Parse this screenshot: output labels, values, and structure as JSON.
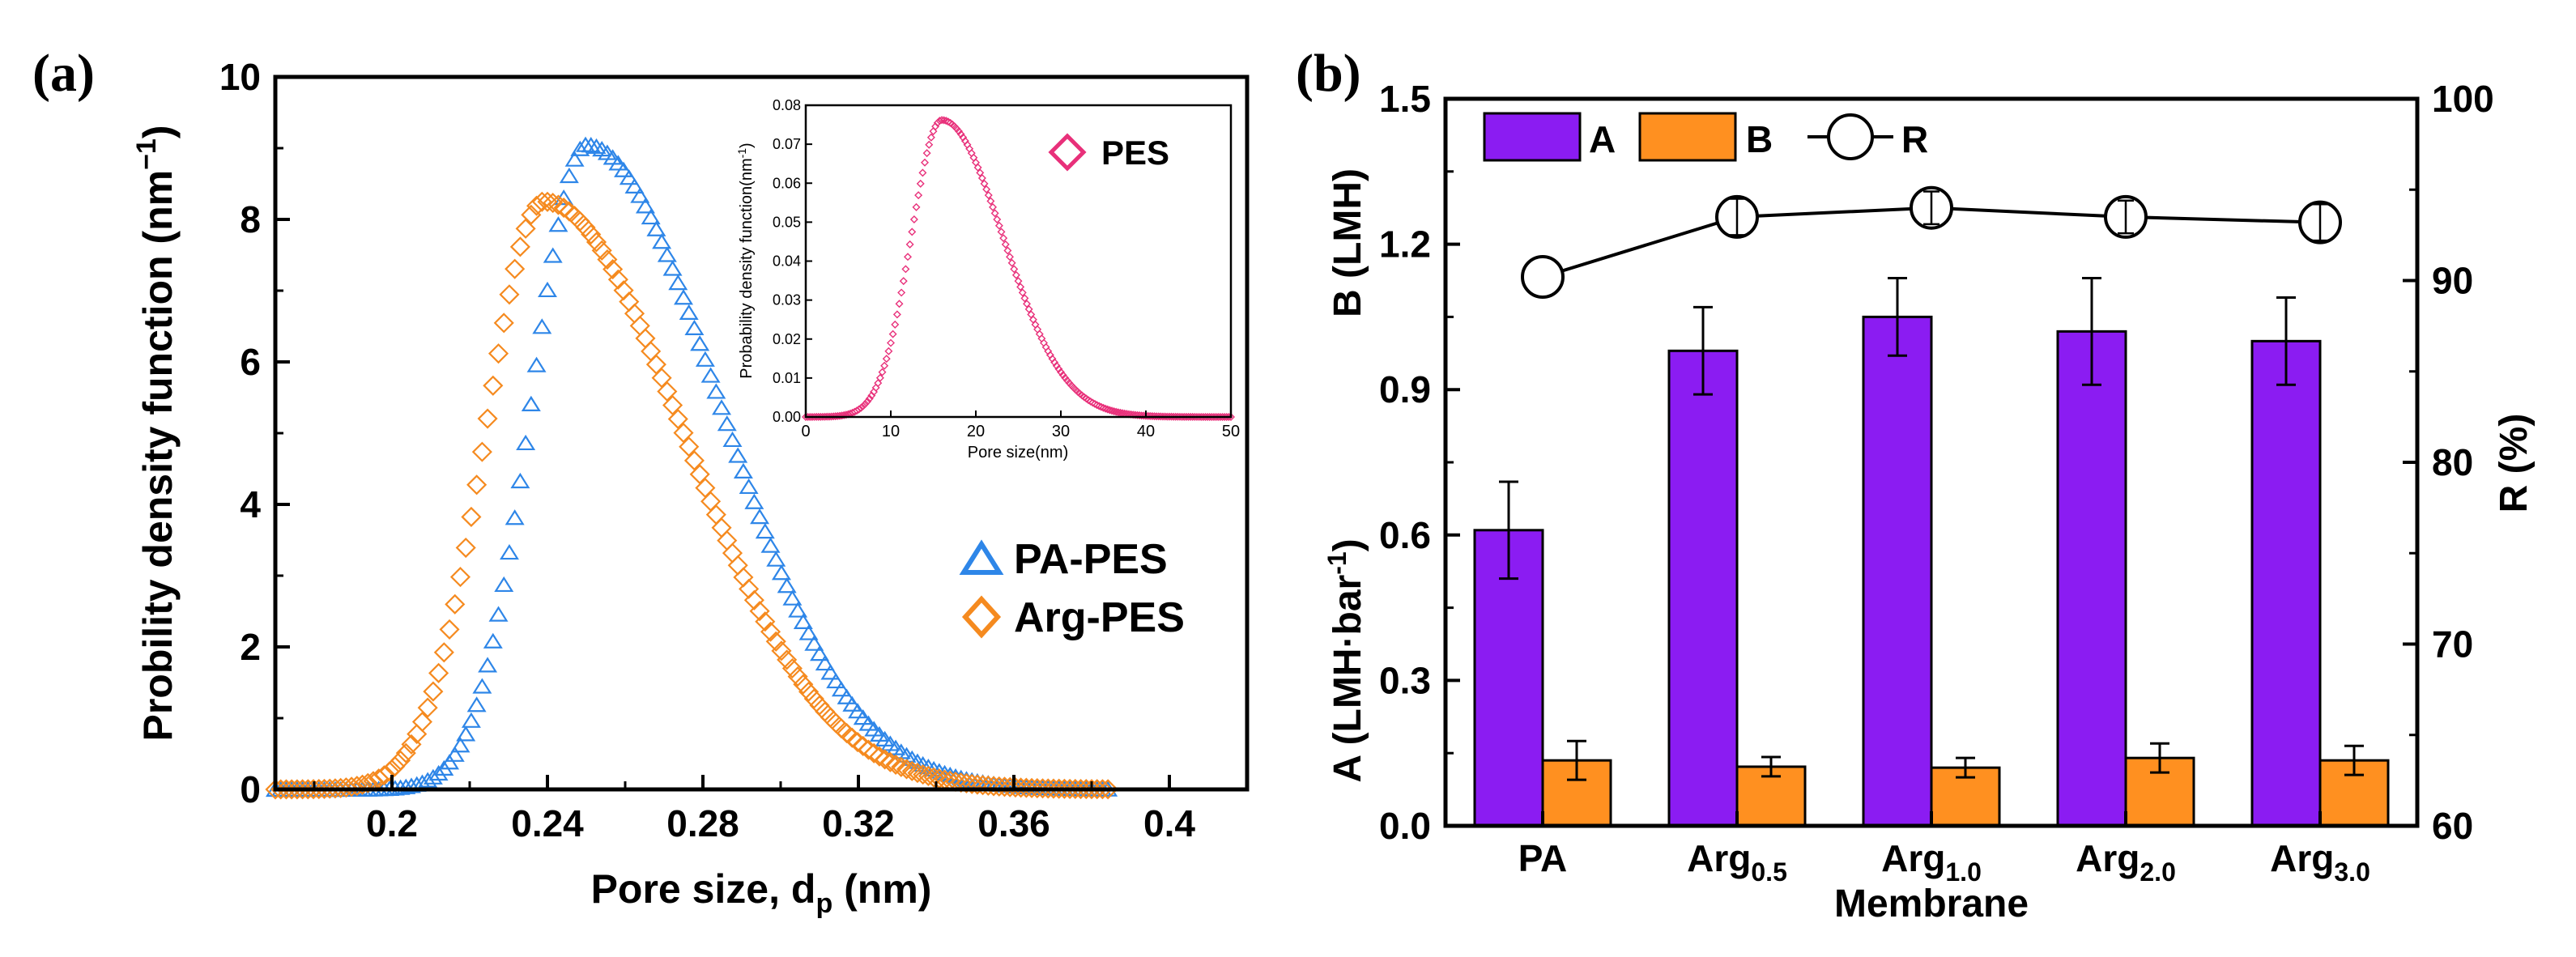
{
  "chart_data": [
    {
      "type": "line",
      "panel_label": "(a)",
      "xlabel": "Pore size, d",
      "xlabel_sub": "p",
      "xlabel_unit": " (nm)",
      "ylabel": "Probility density function (nm",
      "ylabel_sup": "−1",
      "ylabel_end": ")",
      "xlim": [
        0.17,
        0.42
      ],
      "ylim": [
        0,
        10
      ],
      "xticks": [
        0.2,
        0.24,
        0.28,
        0.32,
        0.36,
        0.4
      ],
      "xtick_labels": [
        "0.2",
        "0.24",
        "0.28",
        "0.32",
        "0.36",
        "0.4"
      ],
      "yticks": [
        0,
        2,
        4,
        6,
        8,
        10
      ],
      "ytick_labels": [
        "0",
        "2",
        "4",
        "6",
        "8",
        "10"
      ],
      "legend_position": "right",
      "series": [
        {
          "name": "PA-PES",
          "color": "#2e86e8",
          "marker": "triangle",
          "mu": 0.25,
          "peak": 9.05,
          "sd_left": 0.014,
          "sd_right": 0.034,
          "x_start": 0.17,
          "x_end": 0.385
        },
        {
          "name": "Arg-PES",
          "color": "#f58a1f",
          "marker": "diamond",
          "mu": 0.239,
          "peak": 8.25,
          "sd_left": 0.015,
          "sd_right": 0.036,
          "x_start": 0.17,
          "x_end": 0.385
        }
      ],
      "inset": {
        "xlabel": "Pore size(nm)",
        "ylabel": "Probability density function(nm",
        "ylabel_sup": "-1",
        "ylabel_end": ")",
        "xlim": [
          0,
          50
        ],
        "ylim": [
          0,
          0.08
        ],
        "xticks": [
          0,
          10,
          20,
          30,
          40,
          50
        ],
        "xtick_labels": [
          "0",
          "10",
          "20",
          "30",
          "40",
          "50"
        ],
        "yticks": [
          0,
          0.01,
          0.02,
          0.03,
          0.04,
          0.05,
          0.06,
          0.07,
          0.08
        ],
        "ytick_labels": [
          "0.00",
          "0.01",
          "0.02",
          "0.03",
          "0.04",
          "0.05",
          "0.06",
          "0.07",
          "0.08"
        ],
        "series": [
          {
            "name": "PES",
            "color": "#e8307a",
            "marker": "diamond",
            "mu": 16,
            "peak": 0.0762,
            "sd_left": 3.6,
            "sd_right": 7.2,
            "x_start": 0,
            "x_end": 50
          }
        ]
      }
    },
    {
      "type": "bar",
      "panel_label": "(b)",
      "xlabel": "Membrane",
      "ylabel_left_bottom": "A (LMH·bar",
      "ylabel_left_bottom_sup": "-1",
      "ylabel_left_bottom_end": ")",
      "ylabel_left_top": "B (LMH)",
      "ylabel_right": "R (%)",
      "categories": [
        {
          "base": "PA",
          "sub": ""
        },
        {
          "base": "Arg",
          "sub": "0.5"
        },
        {
          "base": "Arg",
          "sub": "1.0"
        },
        {
          "base": "Arg",
          "sub": "2.0"
        },
        {
          "base": "Arg",
          "sub": "3.0"
        }
      ],
      "ylim": [
        0,
        1.5
      ],
      "yticks": [
        0,
        0.3,
        0.6,
        0.9,
        1.2,
        1.5
      ],
      "ytick_labels": [
        "0.0",
        "0.3",
        "0.6",
        "0.9",
        "1.2",
        "1.5"
      ],
      "y2lim": [
        60,
        100
      ],
      "y2ticks": [
        60,
        70,
        80,
        90,
        100
      ],
      "y2tick_labels": [
        "60",
        "70",
        "80",
        "90",
        "100"
      ],
      "legend_position": "top-left",
      "series": [
        {
          "name": "A",
          "color": "#8b1cf2",
          "values": [
            0.61,
            0.98,
            1.05,
            1.02,
            1.0
          ],
          "errors": [
            0.1,
            0.09,
            0.08,
            0.11,
            0.09
          ]
        },
        {
          "name": "B",
          "color": "#ff9020",
          "values": [
            0.135,
            0.122,
            0.12,
            0.14,
            0.135
          ],
          "errors": [
            0.04,
            0.02,
            0.02,
            0.03,
            0.03
          ]
        },
        {
          "name": "R",
          "color": "#000000",
          "axis": "right",
          "values": [
            90.2,
            93.5,
            94.0,
            93.5,
            93.2
          ],
          "errors": [
            0.3,
            1.0,
            0.9,
            0.9,
            1.0
          ]
        }
      ]
    }
  ]
}
